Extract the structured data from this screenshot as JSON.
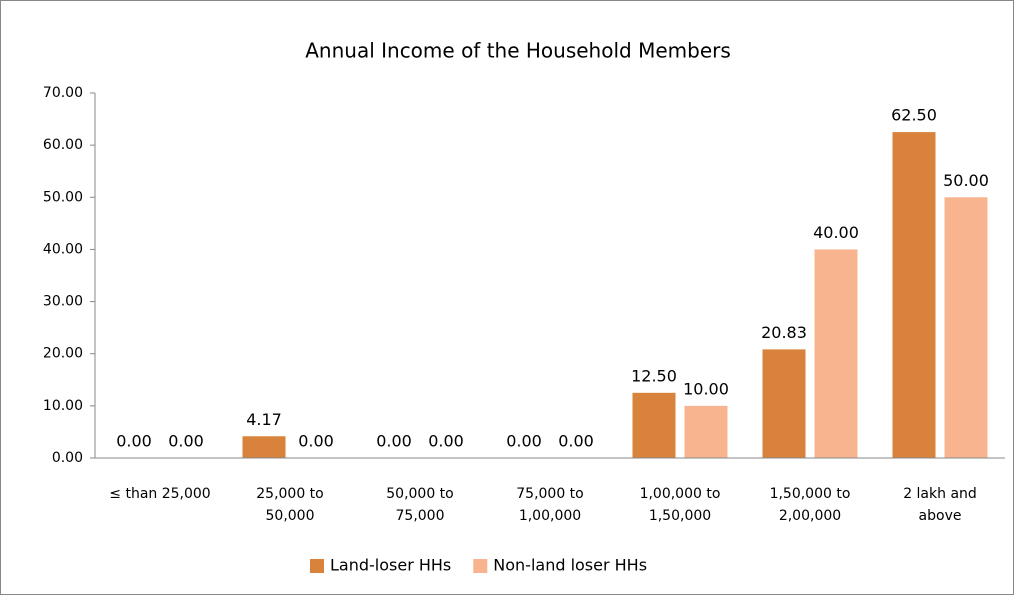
{
  "chart_data": {
    "type": "bar",
    "title": "Annual Income of the Household Members",
    "categories": [
      "≤ than 25,000",
      "25,000 to\n50,000",
      "50,000 to\n75,000",
      "75,000 to\n1,00,000",
      "1,00,000 to\n1,50,000",
      "1,50,000 to\n2,00,000",
      "2 lakh and\nabove"
    ],
    "series": [
      {
        "name": "Land-loser HHs",
        "color": "#d9823b",
        "values": [
          0,
          4.17,
          0,
          0,
          12.5,
          20.83,
          62.5
        ],
        "value_labels": [
          "0.00",
          "4.17",
          "0.00",
          "0.00",
          "12.50",
          "20.83",
          "62.50"
        ]
      },
      {
        "name": "Non-land loser HHs",
        "color": "#f7b48e",
        "values": [
          0,
          0,
          0,
          0,
          10,
          40,
          50
        ],
        "value_labels": [
          "0.00",
          "0.00",
          "0.00",
          "0.00",
          "10.00",
          "40.00",
          "50.00"
        ]
      }
    ],
    "ylim": [
      0,
      70
    ],
    "yticks": [
      {
        "value": 0,
        "label": "0.00"
      },
      {
        "value": 10,
        "label": "10.00"
      },
      {
        "value": 20,
        "label": "20.00"
      },
      {
        "value": 30,
        "label": "30.00"
      },
      {
        "value": 40,
        "label": "40.00"
      },
      {
        "value": 50,
        "label": "50.00"
      },
      {
        "value": 60,
        "label": "60.00"
      },
      {
        "value": 70,
        "label": "70.00"
      }
    ],
    "grid": false,
    "legend": "bottom"
  }
}
